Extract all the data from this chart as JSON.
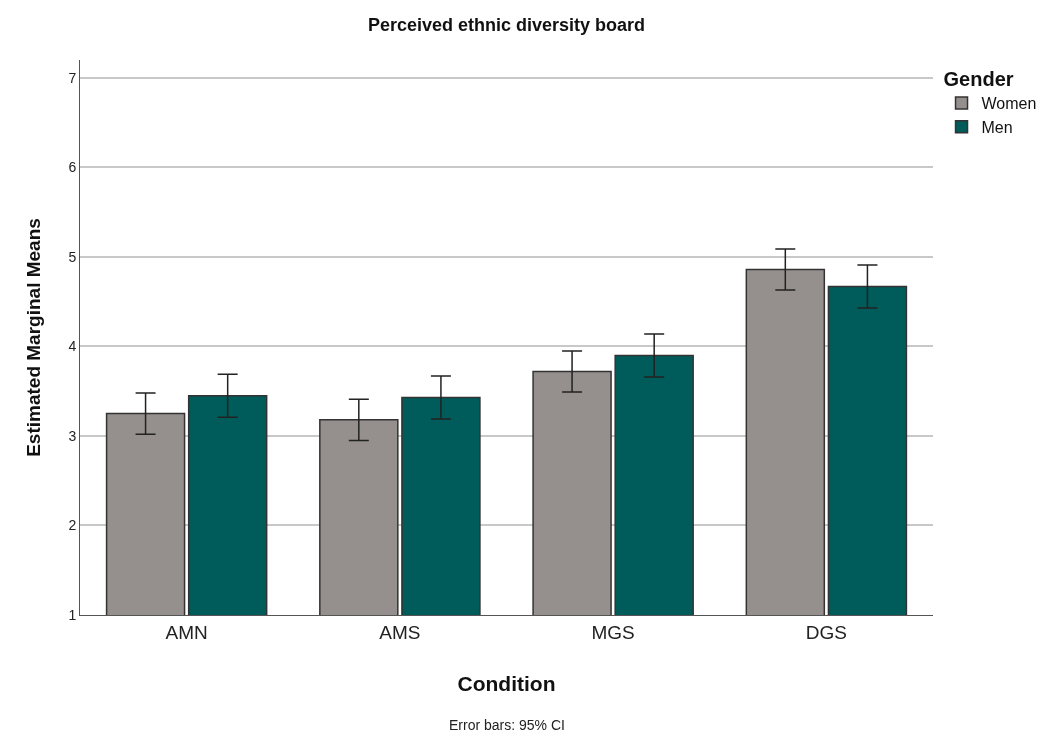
{
  "chart_data": {
    "type": "bar",
    "title": "Perceived ethnic diversity board",
    "xlabel": "Condition",
    "ylabel": "Estimated Marginal Means",
    "legend_title": "Gender",
    "categories": [
      "AMN",
      "AMS",
      "MGS",
      "DGS"
    ],
    "series": [
      {
        "name": "Women",
        "color": "#95908e",
        "values": [
          3.25,
          3.18,
          3.72,
          4.86
        ],
        "errors": [
          0.23,
          0.23,
          0.23,
          0.23
        ]
      },
      {
        "name": "Men",
        "color": "#005c5a",
        "values": [
          3.45,
          3.43,
          3.9,
          4.67
        ],
        "errors": [
          0.24,
          0.24,
          0.24,
          0.24
        ]
      }
    ],
    "ylim": [
      1,
      7.2
    ],
    "yticks": [
      1,
      2,
      3,
      4,
      5,
      6,
      7
    ],
    "grid": "y",
    "legend": "top right",
    "annotations": [
      "Error bars: 95% CI"
    ]
  }
}
